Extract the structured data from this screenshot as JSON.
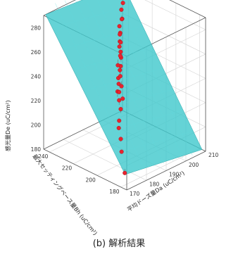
{
  "caption": "(b) 解析結果",
  "chart_data": {
    "type": "scatter",
    "variant": "3d-scatter-with-regression-plane",
    "title": "",
    "x_label": "最大セッティングベース量Bh (uC/cm²)",
    "y_label": "平均ドーズ量Da (uC/cm²)",
    "z_label": "感光量De (uC/cm²)",
    "x_ticks": [
      "180",
      "200",
      "220",
      "240"
    ],
    "y_ticks": [
      "170",
      "180",
      "190",
      "200",
      "210"
    ],
    "z_ticks": [
      "180",
      "200",
      "220",
      "240",
      "260",
      "280"
    ],
    "x_range": [
      175,
      245
    ],
    "y_range": [
      170,
      210
    ],
    "z_range": [
      180,
      290
    ],
    "grid": true,
    "plane_color": "#3ec8cc",
    "point_color": "#e8232e",
    "points": [
      [
        180,
        172,
        190
      ],
      [
        186,
        174,
        203
      ],
      [
        190,
        176,
        210
      ],
      [
        195,
        178,
        215
      ],
      [
        198,
        180,
        218
      ],
      [
        200,
        182,
        225
      ],
      [
        203,
        183,
        230
      ],
      [
        206,
        184,
        235
      ],
      [
        208,
        186,
        232
      ],
      [
        210,
        187,
        237
      ],
      [
        212,
        188,
        240
      ],
      [
        214,
        190,
        244
      ],
      [
        215,
        191,
        246
      ],
      [
        217,
        192,
        236
      ],
      [
        218,
        193,
        250
      ],
      [
        220,
        194,
        253
      ],
      [
        222,
        195,
        248
      ],
      [
        224,
        196,
        258
      ],
      [
        225,
        197,
        256
      ],
      [
        227,
        198,
        262
      ],
      [
        229,
        199,
        259
      ],
      [
        231,
        200,
        264
      ],
      [
        232,
        202,
        268
      ],
      [
        234,
        203,
        266
      ],
      [
        236,
        204,
        272
      ],
      [
        238,
        206,
        275
      ],
      [
        240,
        207,
        278
      ],
      [
        242,
        208,
        282
      ],
      [
        244,
        209,
        286
      ],
      [
        205,
        186,
        228
      ],
      [
        211,
        189,
        233
      ],
      [
        219,
        192,
        244
      ],
      [
        226,
        197,
        252
      ]
    ]
  }
}
